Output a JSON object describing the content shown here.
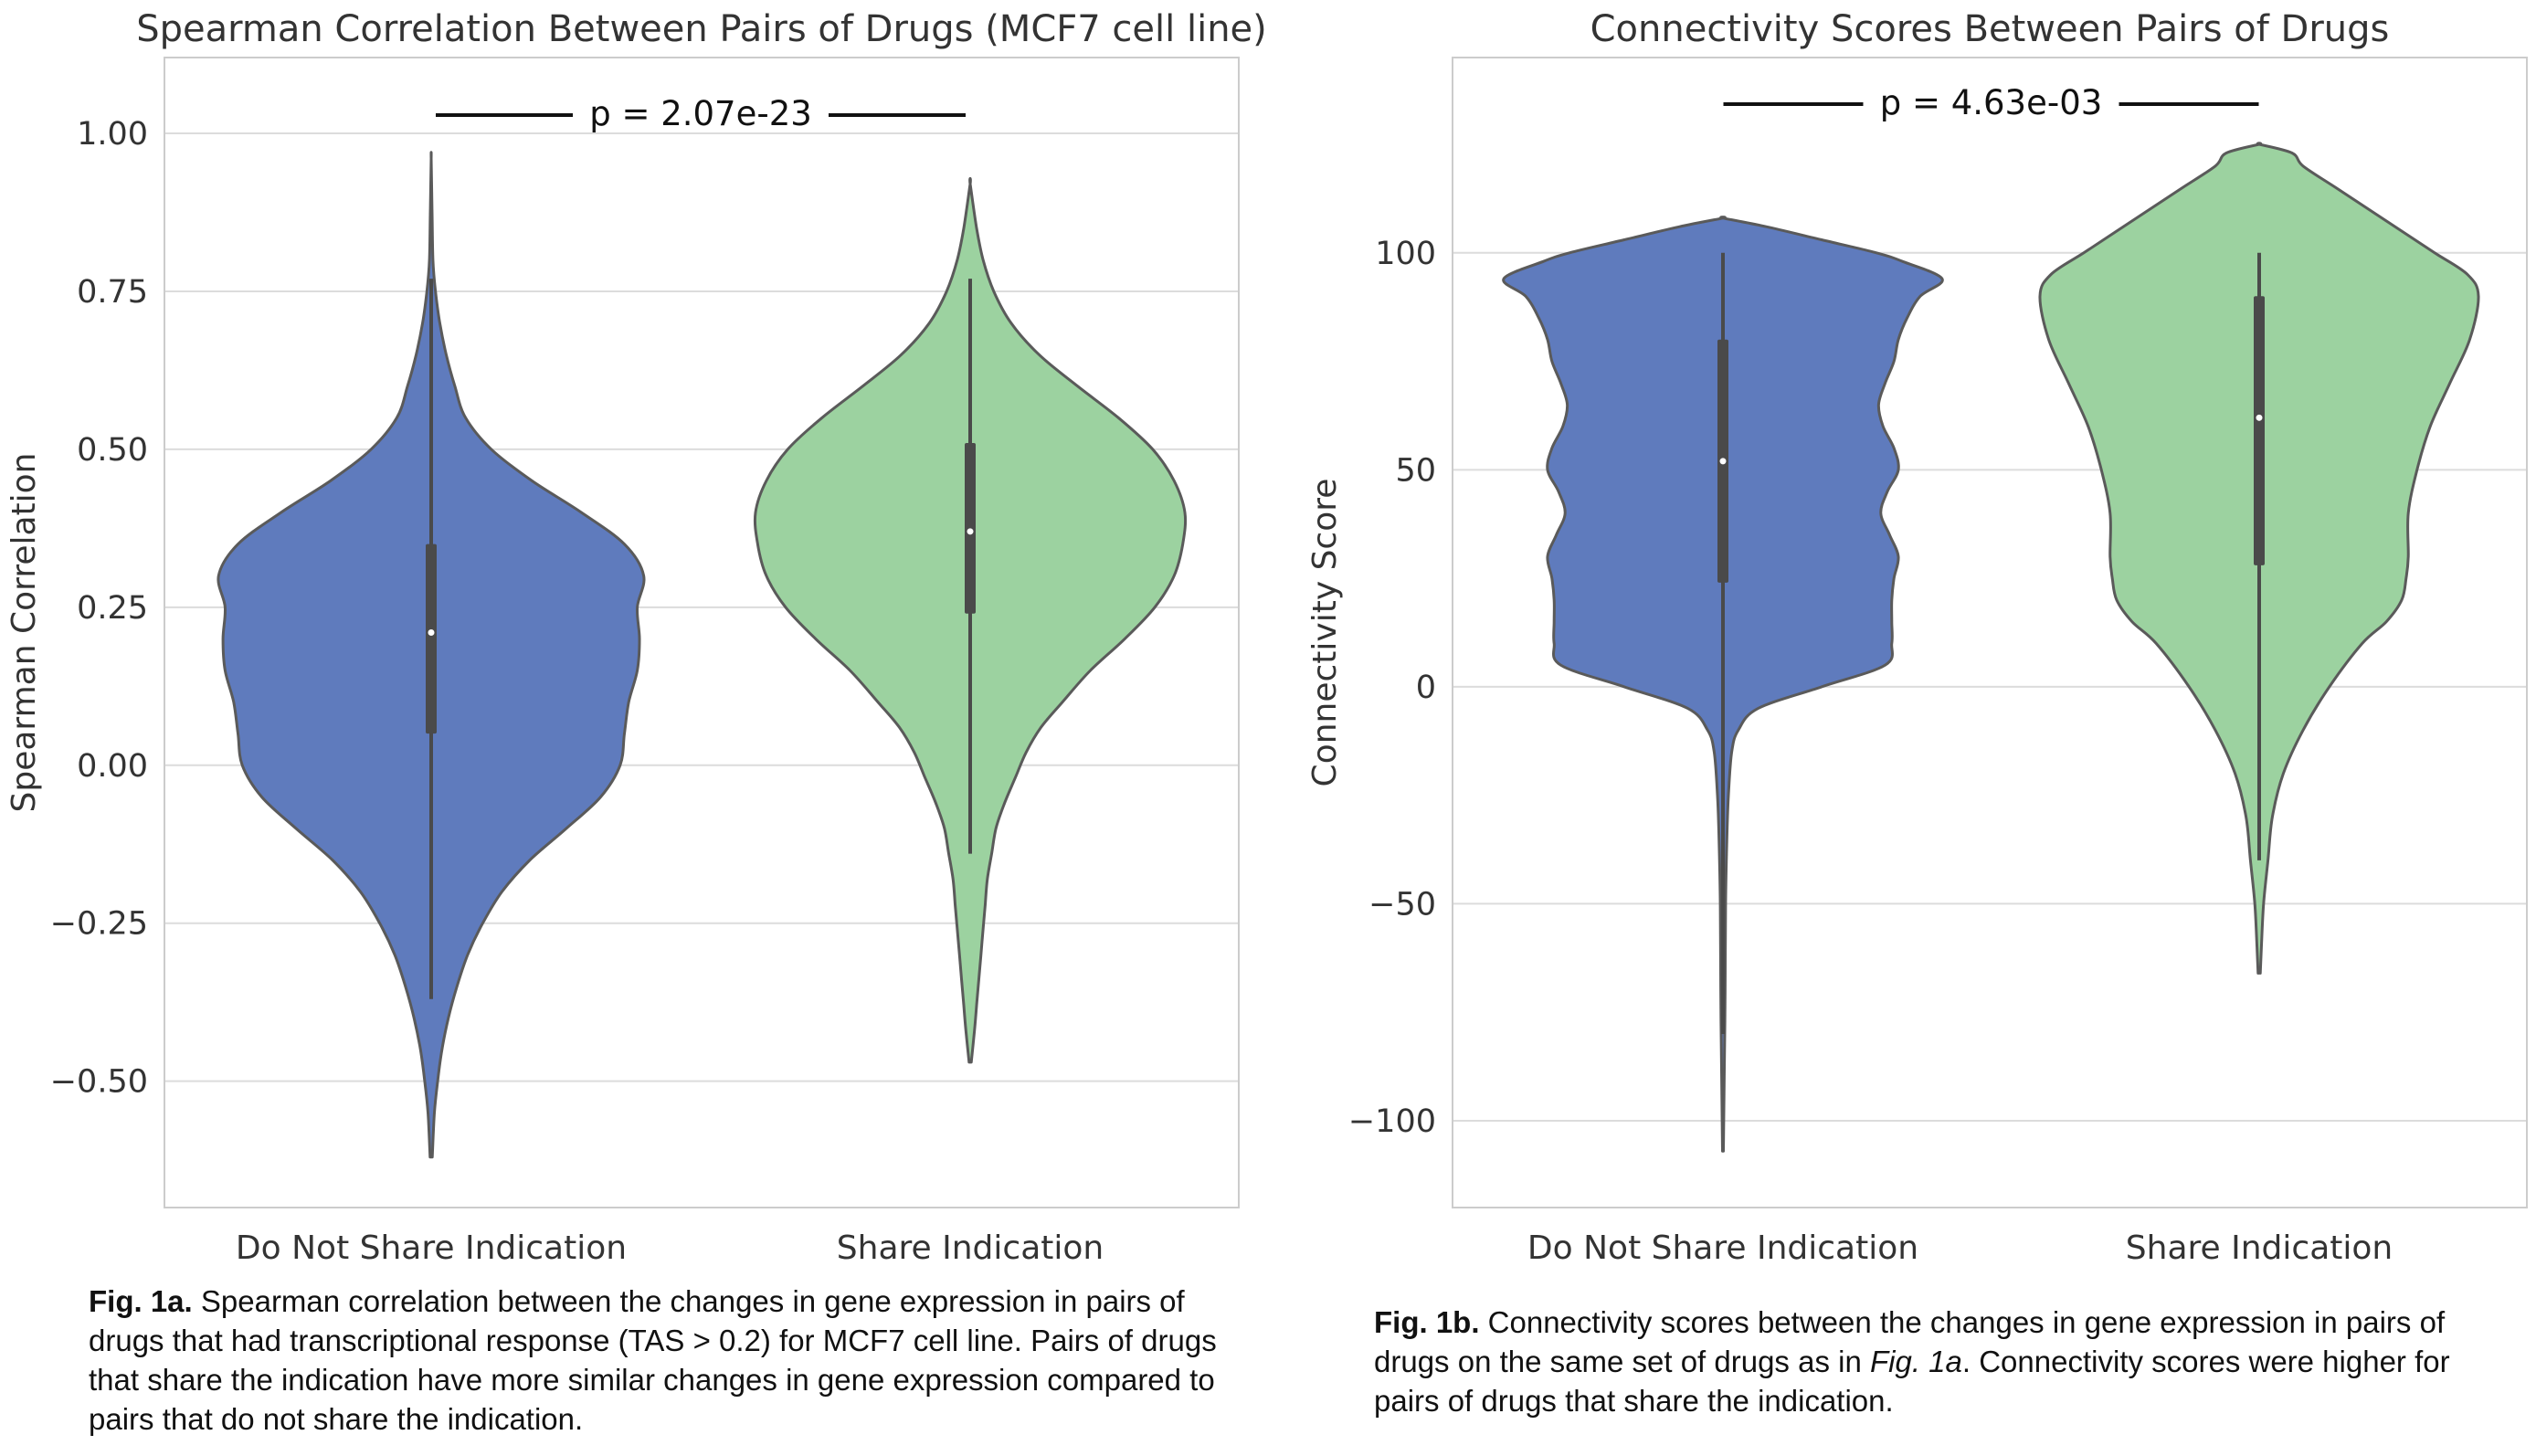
{
  "chart_data": [
    {
      "type": "violin",
      "title": "Spearman Correlation Between Pairs of Drugs (MCF7 cell line)",
      "xlabel": "",
      "ylabel": "Spearman Correlation",
      "ylim": [
        -0.7,
        1.12
      ],
      "yticks": [
        -0.5,
        -0.25,
        0.0,
        0.25,
        0.5,
        0.75,
        1.0
      ],
      "ytick_labels": [
        "−0.50",
        "−0.25",
        "0.00",
        "0.25",
        "0.50",
        "0.75",
        "1.00"
      ],
      "grid": true,
      "categories": [
        "Do Not Share Indication",
        "Share Indication"
      ],
      "series": [
        {
          "color": "#5f7bbd",
          "min": -0.62,
          "max": 0.96,
          "whisker": [
            -0.37,
            0.77
          ],
          "q1": 0.05,
          "median": 0.21,
          "q3": 0.35,
          "profile": [
            [
              -0.62,
              0.005
            ],
            [
              -0.55,
              0.015
            ],
            [
              -0.5,
              0.03
            ],
            [
              -0.45,
              0.05
            ],
            [
              -0.4,
              0.08
            ],
            [
              -0.35,
              0.12
            ],
            [
              -0.3,
              0.17
            ],
            [
              -0.25,
              0.24
            ],
            [
              -0.2,
              0.33
            ],
            [
              -0.15,
              0.46
            ],
            [
              -0.1,
              0.63
            ],
            [
              -0.05,
              0.79
            ],
            [
              0.0,
              0.88
            ],
            [
              0.05,
              0.9
            ],
            [
              0.1,
              0.92
            ],
            [
              0.15,
              0.96
            ],
            [
              0.2,
              0.97
            ],
            [
              0.25,
              0.96
            ],
            [
              0.3,
              0.99
            ],
            [
              0.35,
              0.9
            ],
            [
              0.4,
              0.7
            ],
            [
              0.45,
              0.47
            ],
            [
              0.5,
              0.28
            ],
            [
              0.55,
              0.16
            ],
            [
              0.6,
              0.11
            ],
            [
              0.65,
              0.07
            ],
            [
              0.7,
              0.04
            ],
            [
              0.75,
              0.02
            ],
            [
              0.8,
              0.008
            ],
            [
              0.88,
              0.004
            ],
            [
              0.96,
              0.0
            ]
          ]
        },
        {
          "color": "#9cd2a0",
          "min": -0.47,
          "max": 0.92,
          "whisker": [
            -0.14,
            0.77
          ],
          "q1": 0.24,
          "median": 0.37,
          "q3": 0.51,
          "profile": [
            [
              -0.47,
              0.005
            ],
            [
              -0.42,
              0.02
            ],
            [
              -0.38,
              0.03
            ],
            [
              -0.34,
              0.04
            ],
            [
              -0.3,
              0.05
            ],
            [
              -0.26,
              0.06
            ],
            [
              -0.22,
              0.07
            ],
            [
              -0.18,
              0.08
            ],
            [
              -0.14,
              0.1
            ],
            [
              -0.1,
              0.12
            ],
            [
              -0.06,
              0.16
            ],
            [
              -0.02,
              0.21
            ],
            [
              0.02,
              0.26
            ],
            [
              0.06,
              0.33
            ],
            [
              0.1,
              0.43
            ],
            [
              0.15,
              0.56
            ],
            [
              0.2,
              0.72
            ],
            [
              0.25,
              0.86
            ],
            [
              0.3,
              0.95
            ],
            [
              0.35,
              0.99
            ],
            [
              0.4,
              1.0
            ],
            [
              0.45,
              0.95
            ],
            [
              0.5,
              0.85
            ],
            [
              0.55,
              0.69
            ],
            [
              0.6,
              0.5
            ],
            [
              0.65,
              0.32
            ],
            [
              0.7,
              0.19
            ],
            [
              0.75,
              0.11
            ],
            [
              0.8,
              0.06
            ],
            [
              0.85,
              0.03
            ],
            [
              0.92,
              0.0
            ]
          ]
        }
      ],
      "annotation": "p = 2.07e-23"
    },
    {
      "type": "violin",
      "title": "Connectivity Scores Between Pairs of Drugs",
      "xlabel": "",
      "ylabel": "Connectivity Score",
      "ylim": [
        -120,
        145
      ],
      "yticks": [
        -100,
        -50,
        0,
        50,
        100
      ],
      "ytick_labels": [
        "−100",
        "−50",
        "0",
        "50",
        "100"
      ],
      "grid": true,
      "categories": [
        "Do Not Share Indication",
        "Share Indication"
      ],
      "series": [
        {
          "color": "#5f7bbd",
          "min": -107,
          "max": 108,
          "whisker": [
            -80,
            100
          ],
          "q1": 24,
          "median": 52,
          "q3": 80,
          "profile": [
            [
              -107,
              0.002
            ],
            [
              -90,
              0.006
            ],
            [
              -70,
              0.01
            ],
            [
              -50,
              0.012
            ],
            [
              -35,
              0.018
            ],
            [
              -25,
              0.025
            ],
            [
              -15,
              0.04
            ],
            [
              -10,
              0.07
            ],
            [
              -5,
              0.16
            ],
            [
              0,
              0.45
            ],
            [
              5,
              0.74
            ],
            [
              10,
              0.77
            ],
            [
              15,
              0.77
            ],
            [
              20,
              0.77
            ],
            [
              25,
              0.78
            ],
            [
              30,
              0.8
            ],
            [
              35,
              0.76
            ],
            [
              40,
              0.72
            ],
            [
              45,
              0.75
            ],
            [
              50,
              0.8
            ],
            [
              55,
              0.78
            ],
            [
              60,
              0.73
            ],
            [
              65,
              0.71
            ],
            [
              70,
              0.74
            ],
            [
              75,
              0.78
            ],
            [
              80,
              0.8
            ],
            [
              85,
              0.84
            ],
            [
              90,
              0.9
            ],
            [
              94,
              1.0
            ],
            [
              98,
              0.82
            ],
            [
              100,
              0.7
            ],
            [
              103,
              0.45
            ],
            [
              106,
              0.2
            ],
            [
              108,
              0.0
            ]
          ]
        },
        {
          "color": "#9cd2a0",
          "min": -66,
          "max": 125,
          "whisker": [
            -40,
            100
          ],
          "q1": 28,
          "median": 62,
          "q3": 90,
          "profile": [
            [
              -66,
              0.005
            ],
            [
              -60,
              0.01
            ],
            [
              -50,
              0.02
            ],
            [
              -40,
              0.04
            ],
            [
              -30,
              0.06
            ],
            [
              -20,
              0.11
            ],
            [
              -10,
              0.2
            ],
            [
              0,
              0.32
            ],
            [
              10,
              0.47
            ],
            [
              15,
              0.58
            ],
            [
              20,
              0.65
            ],
            [
              25,
              0.67
            ],
            [
              30,
              0.68
            ],
            [
              40,
              0.68
            ],
            [
              50,
              0.72
            ],
            [
              60,
              0.78
            ],
            [
              70,
              0.87
            ],
            [
              80,
              0.96
            ],
            [
              90,
              1.0
            ],
            [
              95,
              0.95
            ],
            [
              100,
              0.8
            ],
            [
              105,
              0.65
            ],
            [
              110,
              0.5
            ],
            [
              115,
              0.35
            ],
            [
              120,
              0.2
            ],
            [
              123,
              0.15
            ],
            [
              125,
              0.0
            ]
          ]
        }
      ],
      "annotation": "p = 4.63e-03"
    }
  ],
  "captions": {
    "a_label": "Fig. 1a.",
    "a_text": " Spearman correlation between the changes in gene expression in pairs of drugs that had transcriptional response (TAS > 0.2) for MCF7 cell line. Pairs of drugs that share the indication have more similar changes in gene expression compared to pairs that do not share the indication.",
    "b_label": "Fig. 1b.",
    "b_text_1": " Connectivity scores between the changes in gene expression in pairs of drugs on the same set of drugs as in ",
    "b_text_ref": "Fig. 1a",
    "b_text_2": ". Connectivity scores were higher for pairs of drugs that share the indication."
  }
}
